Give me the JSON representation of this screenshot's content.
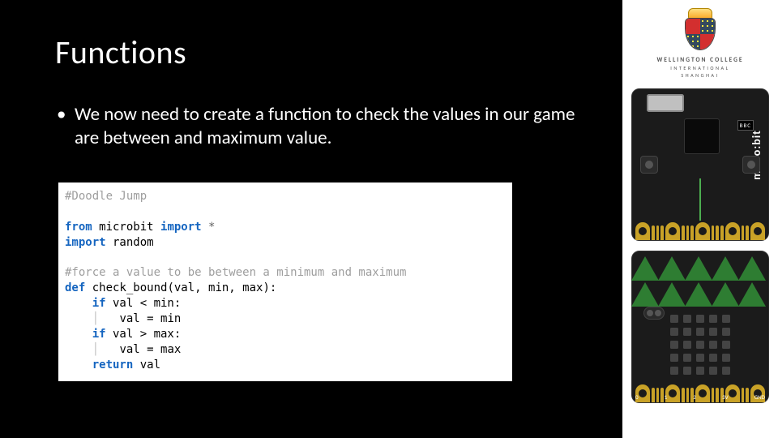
{
  "slide": {
    "background_color": "#000000",
    "text_color": "#ffffff",
    "title": "Functions",
    "title_fontsize": 40,
    "bullet_fontsize": 23,
    "bullet_text": "We now need to create a function to check the values in our game are between and maximum value."
  },
  "code": {
    "background_color": "#ffffff",
    "font_family": "Consolas, Menlo, monospace",
    "fontsize": 14,
    "colors": {
      "comment": "#9e9e9e",
      "keyword": "#1565c0",
      "operator": "#616161",
      "identifier": "#212121",
      "guide": "#c0c0c0"
    },
    "lines": {
      "l1_comment": "#Doodle Jump",
      "l3_kw_from": "from",
      "l3_mod": " microbit ",
      "l3_kw_import": "import",
      "l3_star": " *",
      "l4_kw_import": "import",
      "l4_mod": " random",
      "l6_comment": "#force a value to be between a minimum and maximum",
      "l7_kw_def": "def",
      "l7_sig": " check_bound(val, min, max):",
      "l8_kw_if": "if",
      "l8_cond": " val < min:",
      "l9_body": "val = min",
      "l10_kw_if": "if",
      "l10_cond": " val > max:",
      "l11_body": "val = max",
      "l12_kw_ret": "return",
      "l12_val": " val"
    }
  },
  "logo": {
    "line1": "WELLINGTON COLLEGE",
    "line2": "INTERNATIONAL",
    "line3": "SHANGHAI",
    "shield_colors": {
      "red": "#d32f2f",
      "navy": "#34495e",
      "gold": "#ffeb3b",
      "crown": "#f9a825"
    }
  },
  "microbit": {
    "board_color": "#1b1b1b",
    "accent_green": "#2e7d32",
    "pin_gold": "#c9a227",
    "brand_text": "micro:bit",
    "bbc_text": "BBC",
    "led_grid": {
      "rows": 5,
      "cols": 5
    },
    "edge_pin_labels": [
      "0",
      "1",
      "2",
      "3V",
      "GND"
    ]
  }
}
